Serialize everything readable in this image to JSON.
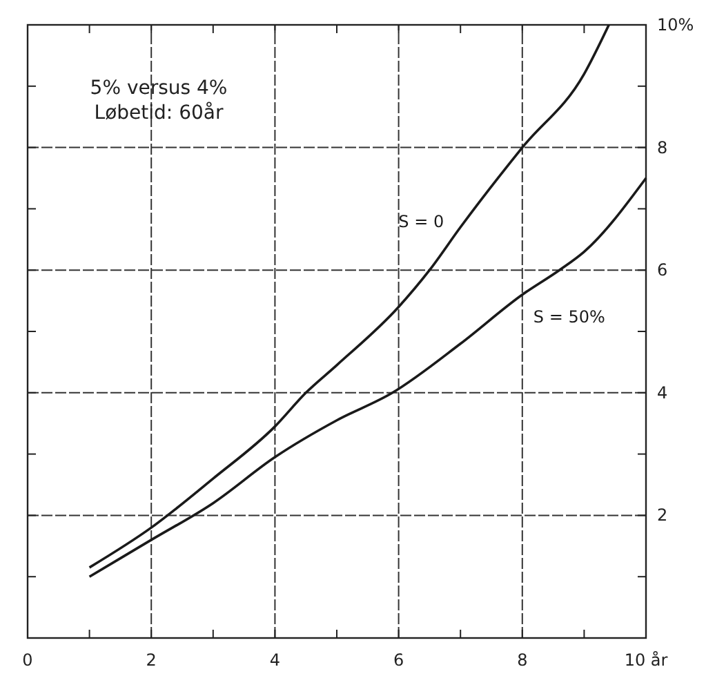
{
  "chart_data": {
    "type": "line",
    "annotations": [
      "5% versus 4%",
      "Løbetid: 60år"
    ],
    "xlim": [
      0,
      10
    ],
    "ylim": [
      0,
      10
    ],
    "xticks": [
      0,
      {
        "value": 1,
        "label": null
      },
      2,
      {
        "value": 3,
        "label": null
      },
      4,
      {
        "value": 5,
        "label": null
      },
      6,
      {
        "value": 7,
        "label": null
      },
      8,
      {
        "value": 9,
        "label": null
      },
      {
        "value": 10,
        "label": "10 år"
      }
    ],
    "yticks": [
      {
        "value": 1,
        "label": null
      },
      2,
      {
        "value": 3,
        "label": null
      },
      4,
      {
        "value": 5,
        "label": null
      },
      6,
      {
        "value": 7,
        "label": null
      },
      8,
      {
        "value": 9,
        "label": null
      },
      {
        "value": 10,
        "label": "10%"
      }
    ],
    "grid": true,
    "series": [
      {
        "name": "S = 0",
        "color": "#1a1a1a",
        "x": [
          1,
          2,
          3,
          4,
          4.5,
          5,
          6,
          6.5,
          7,
          8,
          9,
          9.4
        ],
        "values": [
          1.15,
          1.8,
          2.6,
          3.45,
          4,
          4.45,
          5.4,
          6,
          6.7,
          8,
          9.2,
          10
        ]
      },
      {
        "name": "S = 50%",
        "color": "#1a1a1a",
        "x": [
          1,
          2,
          3,
          4,
          5,
          5.9,
          7,
          8,
          8.6,
          9,
          10
        ],
        "values": [
          1,
          1.6,
          2.2,
          2.95,
          3.55,
          4,
          4.8,
          5.6,
          6,
          6.3,
          7.5
        ]
      }
    ]
  }
}
